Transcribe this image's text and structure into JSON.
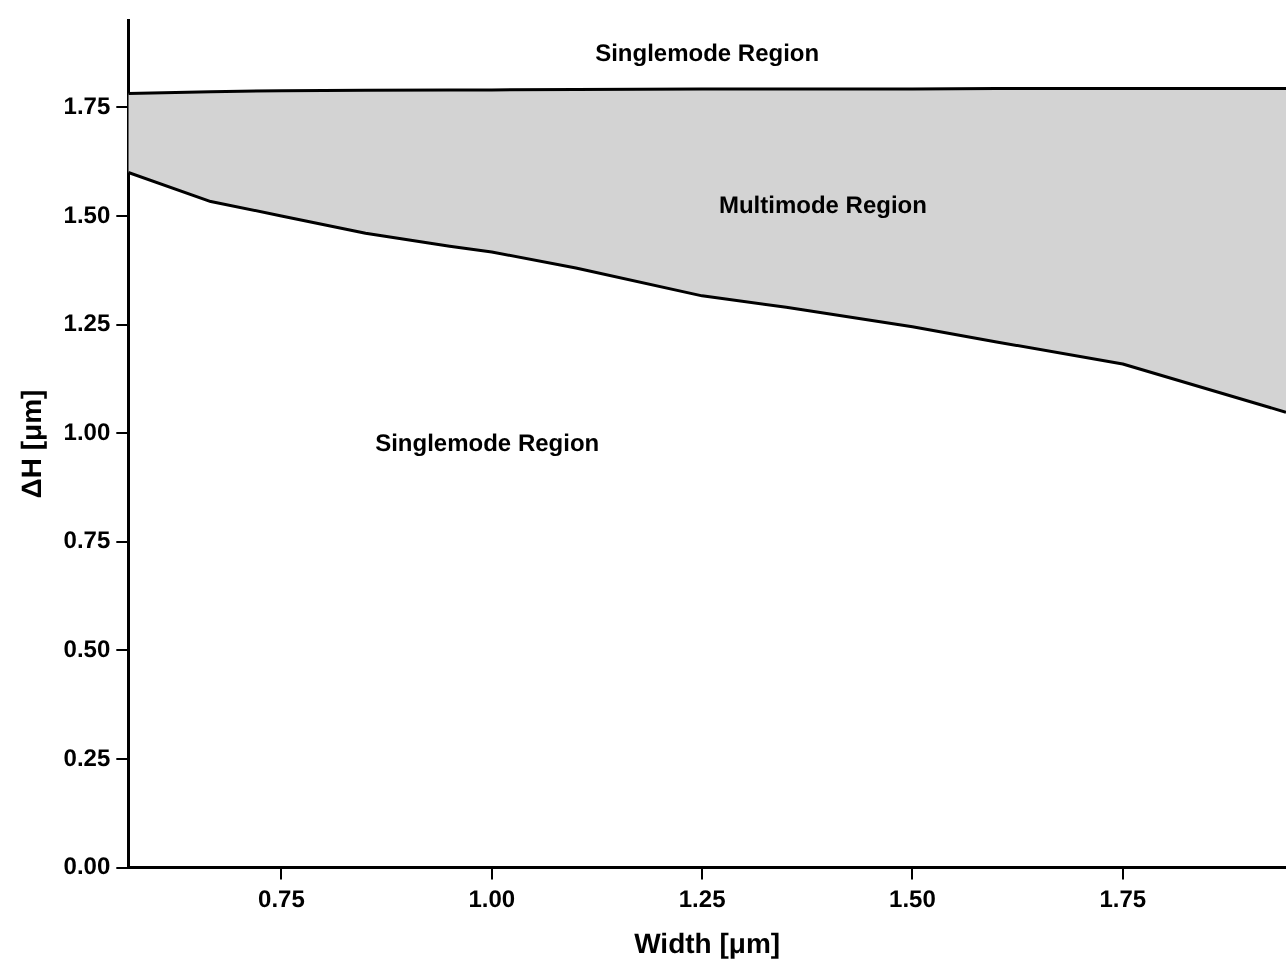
{
  "chart_data": {
    "type": "area",
    "xlabel": "Width [μm]",
    "ylabel": "ΔH [μm]",
    "x": [
      0.568,
      0.666,
      0.75,
      0.85,
      0.95,
      1.0,
      1.1,
      1.25,
      1.35,
      1.5,
      1.6,
      1.75,
      1.944
    ],
    "series": [
      {
        "type": "line",
        "color": "#000000",
        "values": [
          1.6,
          1.533,
          1.5,
          1.46,
          1.43,
          1.417,
          1.38,
          1.316,
          1.29,
          1.245,
          1.21,
          1.159,
          1.048
        ]
      },
      {
        "color": "#d3d3d3",
        "values": [
          1.782,
          1.786,
          1.788,
          1.789,
          1.79,
          1.79,
          1.791,
          1.792,
          1.792,
          1.792,
          1.793,
          1.793,
          1.793
        ]
      }
    ],
    "xlim": [
      0.568,
      1.944
    ],
    "ylim": [
      0,
      1.95
    ],
    "xticks": [
      0.75,
      {
        "value": 1,
        "label": "1.00"
      },
      1.25,
      {
        "value": 1.5,
        "label": "1.50"
      },
      1.75
    ],
    "yticks": [
      {
        "value": 0,
        "label": "0.00"
      },
      0.25,
      {
        "value": 0.5,
        "label": "0.50"
      },
      0.75,
      {
        "value": 1,
        "label": "1.00"
      },
      1.25,
      {
        "value": 1.5,
        "label": "1.50"
      },
      1.75
    ],
    "grid": false,
    "legend": false,
    "marker": "none",
    "line_style": "solid",
    "annotations": [
      "Singlemode Region",
      "Multimode Region",
      "Singlemode Region"
    ]
  }
}
